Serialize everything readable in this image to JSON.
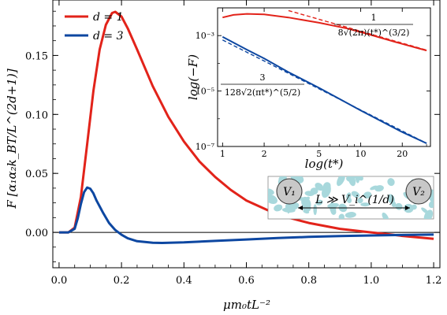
{
  "chart_data": [
    {
      "type": "line",
      "xlabel": "μm₀tL⁻²",
      "ylabel": "F [α₁α₂k_BT/L^(2d+1)]",
      "xlim": [
        -0.02,
        1.22
      ],
      "ylim": [
        -0.03,
        0.197
      ],
      "xticks": [
        "0.0",
        "0.2",
        "0.4",
        "0.6",
        "0.8",
        "1.0",
        "1.2"
      ],
      "yticks": [
        "0.00",
        "0.05",
        "0.10",
        "0.15"
      ],
      "grid": false,
      "legend_position": "top-left",
      "series": [
        {
          "name": "d = 1",
          "color": "#e2231a",
          "x": [
            0.0,
            0.03,
            0.05,
            0.07,
            0.09,
            0.11,
            0.13,
            0.15,
            0.17,
            0.18,
            0.2,
            0.22,
            0.25,
            0.3,
            0.35,
            0.4,
            0.45,
            0.5,
            0.55,
            0.6,
            0.7,
            0.8,
            0.9,
            1.0,
            1.05,
            1.1,
            1.2
          ],
          "y": [
            0.0,
            0.0,
            0.004,
            0.03,
            0.075,
            0.12,
            0.155,
            0.176,
            0.186,
            0.187,
            0.183,
            0.173,
            0.155,
            0.124,
            0.098,
            0.077,
            0.06,
            0.047,
            0.036,
            0.027,
            0.015,
            0.008,
            0.003,
            0.0,
            -0.0015,
            -0.003,
            -0.0055
          ]
        },
        {
          "name": "d = 3",
          "color": "#0d47a1",
          "x": [
            0.0,
            0.03,
            0.05,
            0.06,
            0.07,
            0.08,
            0.09,
            0.1,
            0.11,
            0.12,
            0.14,
            0.16,
            0.18,
            0.2,
            0.22,
            0.25,
            0.3,
            0.33,
            0.4,
            0.5,
            0.6,
            0.7,
            0.8,
            0.9,
            1.0,
            1.1,
            1.2
          ],
          "y": [
            0.0,
            0.0,
            0.003,
            0.012,
            0.024,
            0.034,
            0.038,
            0.037,
            0.033,
            0.027,
            0.017,
            0.008,
            0.002,
            -0.002,
            -0.005,
            -0.0075,
            -0.0088,
            -0.009,
            -0.0085,
            -0.0072,
            -0.006,
            -0.0048,
            -0.0038,
            -0.0031,
            -0.0026,
            -0.0022,
            -0.0019
          ]
        }
      ]
    },
    {
      "type": "line",
      "xlabel": "log(t*)",
      "ylabel": "log(−F)",
      "xscale": "log",
      "yscale": "log",
      "xlim": [
        0.92,
        32
      ],
      "ylim": [
        1e-07,
        0.01
      ],
      "xticks": [
        "1",
        "2",
        "5",
        "10",
        "20"
      ],
      "yticks": [
        "10⁻³",
        "10⁻⁵",
        "10⁻⁷"
      ],
      "series": [
        {
          "name": "d = 1",
          "color": "#e2231a",
          "x": [
            1.0,
            1.2,
            1.5,
            2.0,
            3.0,
            5.0,
            8.0,
            12.0,
            18.0,
            25.0,
            30.0
          ],
          "y": [
            0.0045,
            0.0056,
            0.0061,
            0.0058,
            0.0045,
            0.0029,
            0.0018,
            0.00103,
            0.00058,
            0.00037,
            0.00029
          ]
        },
        {
          "name": "d = 1 asymptote",
          "color": "#e2231a",
          "dashed": true,
          "x": [
            3.0,
            30.0
          ],
          "y": [
            0.008,
            0.0003
          ]
        },
        {
          "name": "d = 3",
          "color": "#0d47a1",
          "x": [
            1.0,
            1.5,
            2.0,
            3.0,
            5.0,
            10.0,
            20.0,
            30.0
          ],
          "y": [
            0.0009,
            0.00031,
            0.00015,
            4.8e-05,
            1.3e-05,
            2e-06,
            3.3e-07,
            1.3e-07
          ]
        },
        {
          "name": "d = 3 asymptote",
          "color": "#0d47a1",
          "dashed": true,
          "x": [
            1.0,
            30.0
          ],
          "y": [
            0.0007,
            1.3e-07
          ]
        }
      ],
      "annotations": {
        "d1_formula_num": "1",
        "d1_formula_den": "8√(2π)(t*)^(3/2)",
        "d3_formula_num": "3",
        "d3_formula_den": "128√2(πt*)^(5/2)"
      }
    }
  ],
  "schematic": {
    "v1_label": "V₁",
    "v2_label": "V₂",
    "distance_label": "L ≫ V_i^(1/d)"
  }
}
